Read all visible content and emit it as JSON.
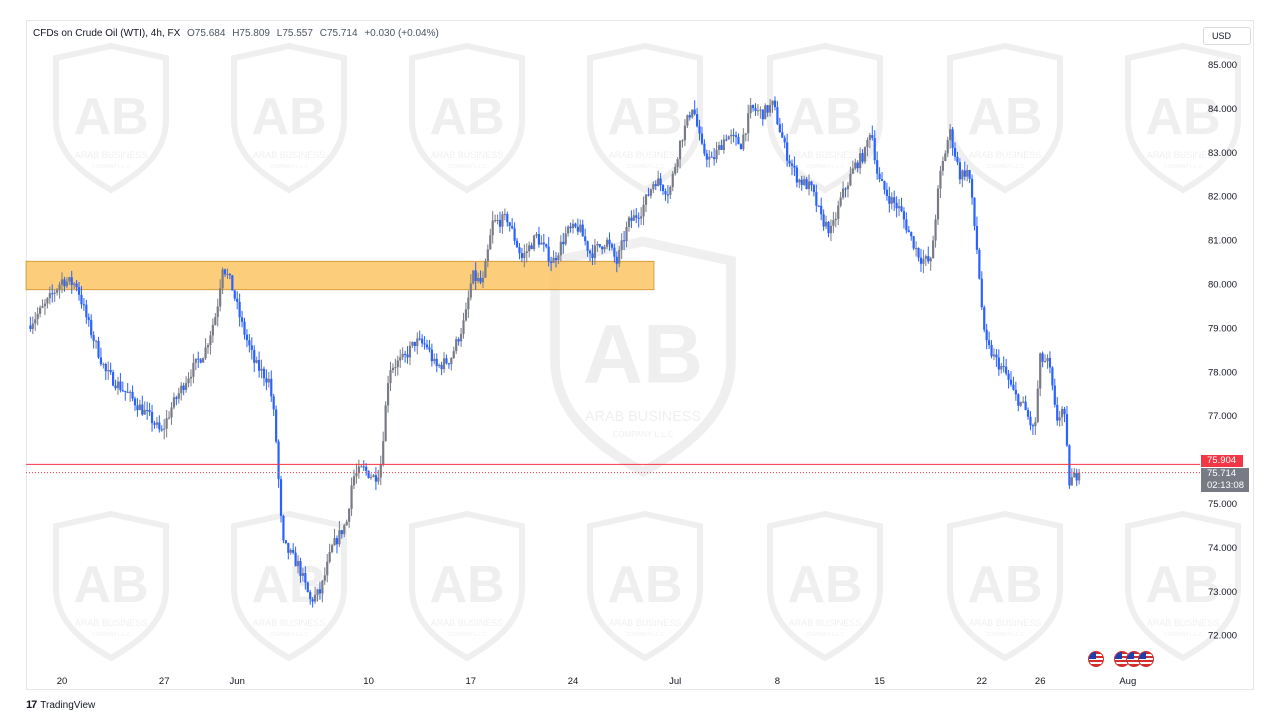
{
  "legend": {
    "symbol": "CFDs on Crude Oil (WTI), 4h, FX",
    "open": "O75.684",
    "high": "H75.809",
    "low": "L75.557",
    "close": "C75.714",
    "change": "+0.030 (+0.04%)"
  },
  "currency": "USD",
  "watermark": {
    "initials": "AB",
    "company": "ARAB BUSINESS",
    "subtitle": "COMPANY L.L.C"
  },
  "price_tags": {
    "red": "75.904",
    "last": "75.714",
    "countdown": "02:13:08"
  },
  "footer": {
    "logo": "17",
    "brand": "TradingView"
  },
  "colors": {
    "up": "#787b86",
    "down": "#2962ff",
    "zone": "#fbbf54",
    "line": "#f23645"
  },
  "chart_data": {
    "type": "candlestick",
    "title": "",
    "y_ticks": [
      "85.000",
      "84.000",
      "83.000",
      "82.000",
      "81.000",
      "80.000",
      "79.000",
      "78.000",
      "77.000",
      "76.000",
      "75.000",
      "74.000",
      "73.000",
      "72.000"
    ],
    "ylim": [
      71.55,
      85.55
    ],
    "x_ticks": [
      {
        "label": "20",
        "day": 0
      },
      {
        "label": "27",
        "day": 7
      },
      {
        "label": "Jun",
        "day": 12
      },
      {
        "label": "10",
        "day": 21
      },
      {
        "label": "17",
        "day": 28
      },
      {
        "label": "24",
        "day": 35
      },
      {
        "label": "Jul",
        "day": 42
      },
      {
        "label": "8",
        "day": 49
      },
      {
        "label": "15",
        "day": 56
      },
      {
        "label": "22",
        "day": 63
      },
      {
        "label": "26",
        "day": 67
      },
      {
        "label": "Aug",
        "day": 73
      }
    ],
    "price_path": [
      [
        -2.5,
        79.0
      ],
      [
        -1.2,
        79.5
      ],
      [
        0,
        80.1
      ],
      [
        1,
        80.0
      ],
      [
        1.8,
        79.1
      ],
      [
        3,
        78.0
      ],
      [
        4.5,
        77.5
      ],
      [
        6.2,
        76.9
      ],
      [
        6.8,
        76.6
      ],
      [
        7.5,
        77.2
      ],
      [
        8.6,
        77.9
      ],
      [
        9.8,
        78.5
      ],
      [
        10.6,
        79.4
      ],
      [
        11.0,
        80.45
      ],
      [
        11.6,
        80.0
      ],
      [
        12.3,
        79.1
      ],
      [
        13.2,
        78.2
      ],
      [
        14.2,
        77.8
      ],
      [
        14.6,
        76.8
      ],
      [
        15.1,
        74.1
      ],
      [
        16.2,
        73.6
      ],
      [
        17.0,
        72.8
      ],
      [
        17.7,
        73.0
      ],
      [
        18.5,
        74.0
      ],
      [
        19.5,
        74.6
      ],
      [
        19.9,
        75.6
      ],
      [
        20.6,
        75.8
      ],
      [
        21.4,
        75.6
      ],
      [
        21.8,
        75.8
      ],
      [
        22.4,
        78.1
      ],
      [
        23.4,
        78.3
      ],
      [
        24.2,
        78.7
      ],
      [
        25.0,
        78.6
      ],
      [
        25.6,
        78.1
      ],
      [
        26.6,
        78.3
      ],
      [
        27.6,
        79.2
      ],
      [
        28.1,
        80.2
      ],
      [
        28.8,
        80.0
      ],
      [
        29.5,
        81.4
      ],
      [
        30.5,
        81.5
      ],
      [
        31.5,
        80.6
      ],
      [
        32.5,
        81.1
      ],
      [
        33.6,
        80.5
      ],
      [
        34.6,
        81.2
      ],
      [
        35.4,
        81.3
      ],
      [
        36.2,
        80.7
      ],
      [
        37.3,
        81.0
      ],
      [
        38.0,
        80.5
      ],
      [
        38.8,
        81.4
      ],
      [
        39.7,
        81.7
      ],
      [
        40.6,
        82.4
      ],
      [
        41.6,
        82.1
      ],
      [
        42.3,
        83.2
      ],
      [
        43.2,
        84.1
      ],
      [
        43.8,
        83.1
      ],
      [
        44.5,
        82.8
      ],
      [
        45.5,
        83.4
      ],
      [
        46.5,
        83.2
      ],
      [
        47.2,
        84.0
      ],
      [
        48.0,
        83.9
      ],
      [
        48.7,
        84.1
      ],
      [
        49.6,
        83.0
      ],
      [
        50.4,
        82.4
      ],
      [
        51.3,
        82.2
      ],
      [
        52.0,
        81.5
      ],
      [
        52.7,
        81.2
      ],
      [
        53.4,
        82.0
      ],
      [
        54.3,
        82.7
      ],
      [
        55.0,
        83.0
      ],
      [
        55.4,
        83.6
      ],
      [
        55.9,
        82.4
      ],
      [
        56.6,
        82.0
      ],
      [
        57.4,
        81.7
      ],
      [
        58.1,
        81.1
      ],
      [
        58.8,
        80.6
      ],
      [
        59.5,
        80.5
      ],
      [
        60.1,
        82.4
      ],
      [
        60.8,
        83.5
      ],
      [
        61.5,
        82.5
      ],
      [
        62.1,
        82.6
      ],
      [
        62.7,
        80.7
      ],
      [
        63.2,
        78.7
      ],
      [
        63.9,
        78.3
      ],
      [
        64.6,
        78.0
      ],
      [
        65.2,
        77.5
      ],
      [
        65.9,
        77.2
      ],
      [
        66.6,
        76.6
      ],
      [
        67.0,
        78.3
      ],
      [
        67.6,
        78.2
      ],
      [
        68.1,
        76.9
      ],
      [
        68.6,
        77.2
      ],
      [
        69.0,
        75.5
      ],
      [
        69.6,
        75.7
      ],
      [
        69.8,
        75.714
      ]
    ],
    "annotations": {
      "resistance_zone": [
        79.88,
        80.53
      ],
      "horizontal_line": 75.904,
      "last_price": 75.714
    }
  }
}
